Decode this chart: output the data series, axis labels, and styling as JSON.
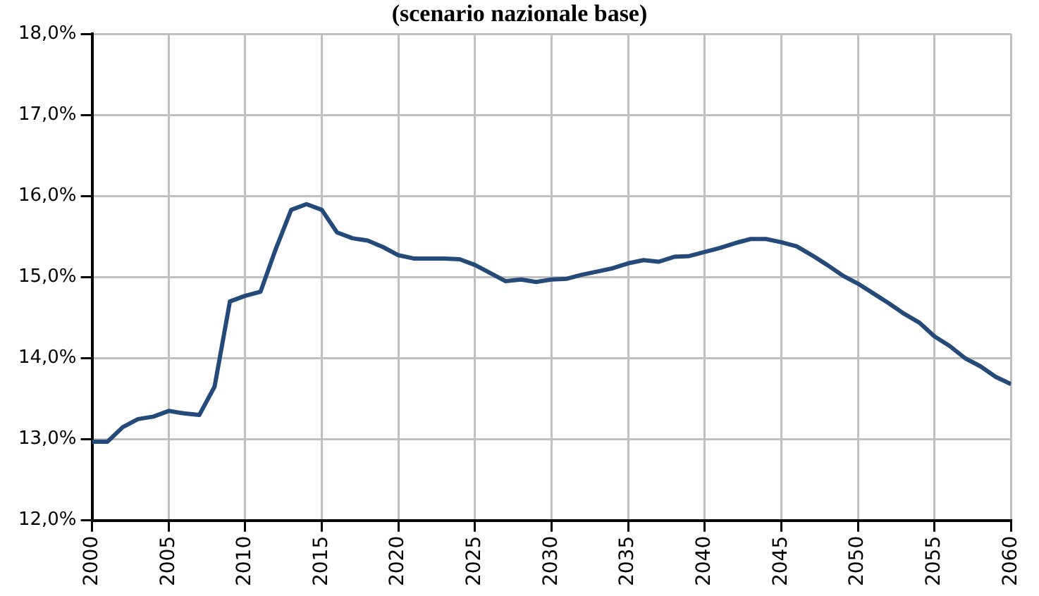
{
  "chart_data": {
    "type": "line",
    "title": "(scenario nazionale base)",
    "x": [
      2000,
      2001,
      2002,
      2003,
      2004,
      2005,
      2006,
      2007,
      2008,
      2009,
      2010,
      2011,
      2012,
      2013,
      2014,
      2015,
      2016,
      2017,
      2018,
      2019,
      2020,
      2021,
      2022,
      2023,
      2024,
      2025,
      2026,
      2027,
      2028,
      2029,
      2030,
      2031,
      2032,
      2033,
      2034,
      2035,
      2036,
      2037,
      2038,
      2039,
      2040,
      2041,
      2042,
      2043,
      2044,
      2045,
      2046,
      2047,
      2048,
      2049,
      2050,
      2051,
      2052,
      2053,
      2054,
      2055,
      2056,
      2057,
      2058,
      2059,
      2060
    ],
    "series": [
      {
        "color": "#244a7a",
        "values": [
          12.97,
          12.97,
          13.15,
          13.25,
          13.28,
          13.35,
          13.32,
          13.3,
          13.65,
          14.7,
          14.77,
          14.82,
          15.35,
          15.83,
          15.9,
          15.83,
          15.55,
          15.48,
          15.45,
          15.37,
          15.27,
          15.23,
          15.23,
          15.23,
          15.22,
          15.15,
          15.05,
          14.95,
          14.97,
          14.94,
          14.97,
          14.98,
          15.03,
          15.07,
          15.11,
          15.17,
          15.21,
          15.19,
          15.25,
          15.26,
          15.31,
          15.36,
          15.42,
          15.47,
          15.47,
          15.43,
          15.38,
          15.27,
          15.15,
          15.02,
          14.92,
          14.8,
          14.68,
          14.55,
          14.44,
          14.27,
          14.15,
          14.0,
          13.9,
          13.77,
          13.68
        ]
      }
    ],
    "xlim": [
      2000,
      2060
    ],
    "xticks": [
      2000,
      2005,
      2010,
      2015,
      2020,
      2025,
      2030,
      2035,
      2040,
      2045,
      2050,
      2055,
      2060
    ],
    "ylim": [
      12,
      18
    ],
    "yticks": [
      {
        "value": 12,
        "label": "12,0%"
      },
      {
        "value": 13,
        "label": "13,0%"
      },
      {
        "value": 14,
        "label": "14,0%"
      },
      {
        "value": 15,
        "label": "15,0%"
      },
      {
        "value": 16,
        "label": "16,0%"
      },
      {
        "value": 17,
        "label": "17,0%"
      },
      {
        "value": 18,
        "label": "18,0%"
      }
    ],
    "grid": true,
    "legend": false,
    "marker": "none",
    "line_style": "solid"
  }
}
